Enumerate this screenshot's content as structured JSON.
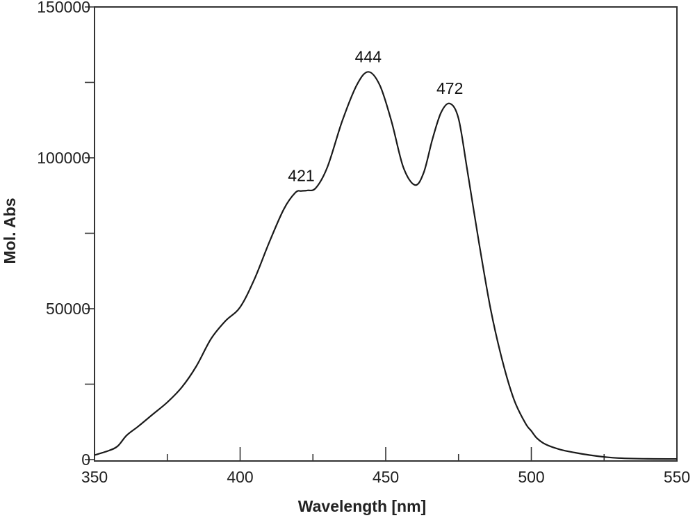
{
  "chart_data": {
    "type": "line",
    "title": "",
    "xlabel": "Wavelength [nm]",
    "ylabel": "Mol. Abs",
    "xlim": [
      350,
      550
    ],
    "ylim": [
      0,
      150000
    ],
    "x_ticks": [
      350,
      400,
      450,
      500,
      550
    ],
    "x_minor_ticks": [
      375,
      425,
      475,
      525
    ],
    "y_ticks": [
      0,
      50000,
      100000,
      150000
    ],
    "y_minor_ticks": [
      25000,
      75000,
      125000
    ],
    "grid": false,
    "series": [
      {
        "points": [
          [
            350,
            1500
          ],
          [
            355,
            3000
          ],
          [
            358,
            4500
          ],
          [
            361,
            8000
          ],
          [
            365,
            11000
          ],
          [
            370,
            15000
          ],
          [
            375,
            19000
          ],
          [
            380,
            24000
          ],
          [
            385,
            31000
          ],
          [
            390,
            40000
          ],
          [
            395,
            46000
          ],
          [
            400,
            50500
          ],
          [
            405,
            60000
          ],
          [
            410,
            72000
          ],
          [
            415,
            83000
          ],
          [
            419,
            88500
          ],
          [
            421,
            89000
          ],
          [
            423,
            89200
          ],
          [
            426,
            90000
          ],
          [
            430,
            97000
          ],
          [
            435,
            112000
          ],
          [
            440,
            124000
          ],
          [
            444,
            128500
          ],
          [
            448,
            124000
          ],
          [
            452,
            112000
          ],
          [
            456,
            97000
          ],
          [
            460,
            91000
          ],
          [
            463,
            95000
          ],
          [
            466,
            106000
          ],
          [
            469,
            115000
          ],
          [
            472,
            118000
          ],
          [
            475,
            113000
          ],
          [
            478,
            96000
          ],
          [
            482,
            72000
          ],
          [
            486,
            50000
          ],
          [
            490,
            33000
          ],
          [
            494,
            20000
          ],
          [
            498,
            12000
          ],
          [
            500,
            9500
          ],
          [
            502,
            7000
          ],
          [
            505,
            5000
          ],
          [
            510,
            3300
          ],
          [
            515,
            2300
          ],
          [
            520,
            1500
          ],
          [
            525,
            900
          ],
          [
            530,
            500
          ],
          [
            540,
            250
          ],
          [
            550,
            200
          ]
        ]
      }
    ],
    "annotations": [
      {
        "text": "421",
        "x": 421,
        "y": 89000
      },
      {
        "text": "444",
        "x": 444,
        "y": 128500
      },
      {
        "text": "472",
        "x": 472,
        "y": 118000
      }
    ]
  }
}
